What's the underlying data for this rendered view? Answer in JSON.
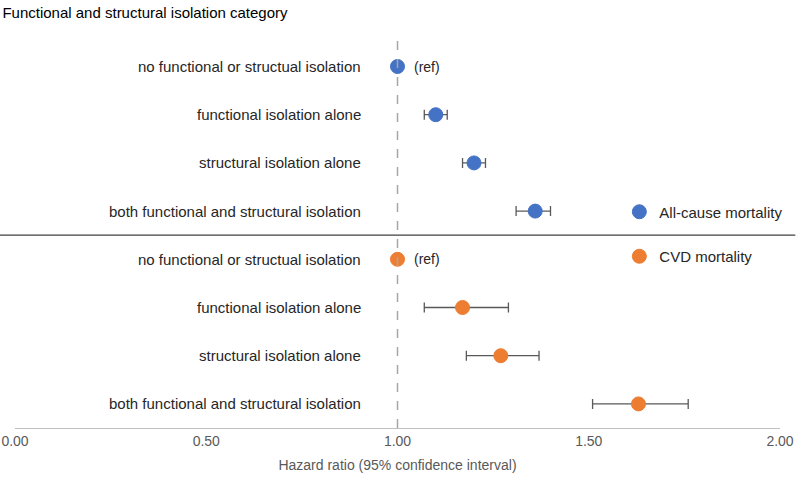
{
  "chart_data": {
    "type": "scatter",
    "title": "Functional and structural isolation category",
    "x_label": "Hazard ratio (95% confidence interval)",
    "categories": [
      "no functional or structual isolation",
      "functional isolation alone",
      "structural isolation alone",
      "both functional and structural isolation",
      "no functional or structual isolation",
      "functional isolation alone",
      "structural isolation alone",
      "both functional and structural isolation"
    ],
    "series": [
      {
        "name": "All-cause mortality",
        "color": "#4472c4",
        "values": [
          1,
          1.1,
          1.2,
          1.36,
          null,
          null,
          null,
          null
        ],
        "ci_low": [
          null,
          1.07,
          1.17,
          1.31,
          null,
          null,
          null,
          null
        ],
        "ci_high": [
          null,
          1.13,
          1.23,
          1.4,
          null,
          null,
          null,
          null
        ]
      },
      {
        "name": "CVD mortality",
        "color": "#ed7d31",
        "values": [
          null,
          null,
          null,
          null,
          1,
          1.17,
          1.27,
          1.63
        ],
        "ci_low": [
          null,
          null,
          null,
          null,
          null,
          1.07,
          1.18,
          1.51
        ],
        "ci_high": [
          null,
          null,
          null,
          null,
          null,
          1.29,
          1.37,
          1.76
        ]
      }
    ],
    "xlim": [
      0,
      2
    ],
    "xticks": [
      {
        "value": 0,
        "label": "0.00"
      },
      {
        "value": 0.5,
        "label": "0.50"
      },
      {
        "value": 1,
        "label": "1.00"
      },
      {
        "value": 1.5,
        "label": "1.50"
      },
      {
        "value": 2,
        "label": "2.00"
      }
    ],
    "reference_line": 1,
    "annotations": [
      {
        "text": "(ref)",
        "series": "All-cause mortality",
        "x": 1
      },
      {
        "text": "(ref)",
        "series": "CVD mortality",
        "x": 1
      }
    ],
    "grid": false,
    "legend": "right",
    "marker": "circle"
  }
}
